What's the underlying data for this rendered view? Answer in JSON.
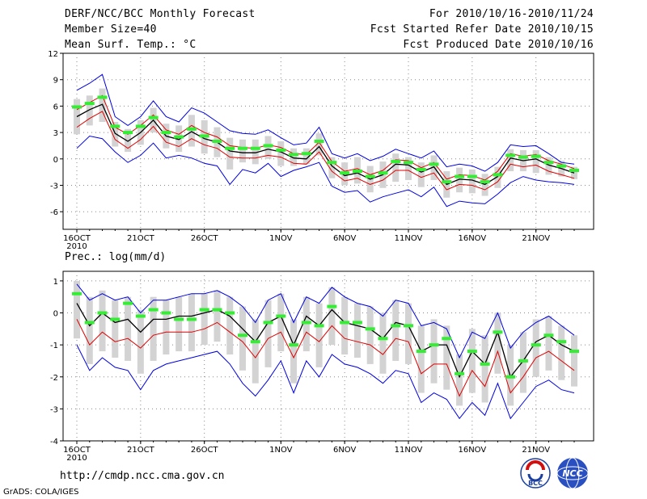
{
  "header": {
    "title": "DERF/NCC/BCC Monthly Forecast",
    "member": "Member Size=40",
    "variable": "Mean Surf. Temp.: °C",
    "period": "For 2010/10/16-2010/11/24",
    "fcst_started": "Fcst Started Refer Date 2010/10/15",
    "fcst_produced": "Fcst Produced Date 2010/10/16"
  },
  "footer": {
    "url": "http://cmdp.ncc.cma.gov.cn",
    "grads": "GrADS: COLA/IGES",
    "logo1": "BCC",
    "logo2": "NCC"
  },
  "colors": {
    "mean": "#000000",
    "members": "#e00000",
    "envelope": "#0000e0",
    "box": "#d3d3d3",
    "ensemble_marker": "#33ee33"
  },
  "chart_data": [
    {
      "type": "line",
      "title": "Mean Surf. Temp.: °C",
      "x": [
        1,
        2,
        3,
        4,
        5,
        6,
        7,
        8,
        9,
        10,
        11,
        12,
        13,
        14,
        15,
        16,
        17,
        18,
        19,
        20,
        21,
        22,
        23,
        24,
        25,
        26,
        27,
        28,
        29,
        30,
        31,
        32,
        33,
        34,
        35,
        36,
        37,
        38,
        39,
        40
      ],
      "xlabel": "2010",
      "tick_labels": [
        {
          "x": 1,
          "label": "16OCT"
        },
        {
          "x": 6,
          "label": "21OCT"
        },
        {
          "x": 11,
          "label": "26OCT"
        },
        {
          "x": 17,
          "label": "1NOV"
        },
        {
          "x": 22,
          "label": "6NOV"
        },
        {
          "x": 27,
          "label": "11NOV"
        },
        {
          "x": 32,
          "label": "16NOV"
        },
        {
          "x": 37,
          "label": "21NOV"
        }
      ],
      "ylim": [
        -8,
        12
      ],
      "yticks": [
        -6,
        -3,
        0,
        3,
        6,
        9,
        12
      ],
      "grid": true,
      "series": [
        {
          "name": "ensemble mean",
          "values": [
            4.8,
            5.6,
            6.2,
            2.9,
            2.0,
            3.0,
            4.4,
            2.6,
            2.2,
            3.1,
            2.3,
            1.9,
            0.9,
            0.7,
            0.7,
            1.1,
            0.8,
            0.1,
            0.0,
            1.4,
            -0.8,
            -1.9,
            -1.6,
            -2.3,
            -1.8,
            -0.6,
            -0.7,
            -1.5,
            -0.9,
            -2.9,
            -2.3,
            -2.4,
            -2.9,
            -2.0,
            0.1,
            -0.2,
            0.0,
            -0.7,
            -1.1,
            -1.6
          ]
        },
        {
          "name": "upper member line",
          "values": [
            5.6,
            6.4,
            7.2,
            3.6,
            2.8,
            3.8,
            5.0,
            3.3,
            2.8,
            3.8,
            3.0,
            2.5,
            1.5,
            1.3,
            1.2,
            1.6,
            1.3,
            0.6,
            0.5,
            1.9,
            -0.3,
            -1.4,
            -1.1,
            -1.8,
            -1.3,
            -0.1,
            -0.2,
            -1.0,
            -0.4,
            -2.3,
            -1.8,
            -1.9,
            -2.4,
            -1.4,
            0.6,
            0.3,
            0.5,
            -0.2,
            -0.6,
            -1.1
          ]
        },
        {
          "name": "lower member line",
          "values": [
            3.6,
            4.6,
            5.4,
            2.2,
            1.2,
            2.2,
            3.7,
            1.9,
            1.4,
            2.3,
            1.6,
            1.2,
            0.2,
            0.1,
            0.1,
            0.4,
            0.2,
            -0.5,
            -0.6,
            0.8,
            -1.4,
            -2.5,
            -2.2,
            -2.9,
            -2.4,
            -1.3,
            -1.3,
            -2.1,
            -1.6,
            -3.5,
            -2.9,
            -3.0,
            -3.5,
            -2.6,
            -0.6,
            -0.9,
            -0.7,
            -1.4,
            -1.8,
            -2.2
          ]
        },
        {
          "name": "maximum",
          "values": [
            7.8,
            8.6,
            9.6,
            4.8,
            3.8,
            4.8,
            6.6,
            4.8,
            4.2,
            5.8,
            5.2,
            4.2,
            3.2,
            2.9,
            2.8,
            3.3,
            2.4,
            1.6,
            1.8,
            3.6,
            0.6,
            0.1,
            0.6,
            -0.2,
            0.3,
            1.1,
            0.6,
            0.1,
            0.9,
            -0.9,
            -0.6,
            -0.8,
            -1.4,
            -0.4,
            1.6,
            1.4,
            1.5,
            0.6,
            -0.4,
            -0.6
          ]
        },
        {
          "name": "minimum",
          "values": [
            1.2,
            2.6,
            2.3,
            0.8,
            -0.4,
            0.4,
            1.8,
            0.1,
            0.4,
            0.1,
            -0.5,
            -0.8,
            -2.9,
            -1.2,
            -1.6,
            -0.5,
            -2.0,
            -1.3,
            -0.9,
            -0.4,
            -3.1,
            -3.8,
            -3.6,
            -4.9,
            -4.3,
            -3.9,
            -3.5,
            -4.3,
            -3.2,
            -5.4,
            -4.8,
            -5.0,
            -5.1,
            -4.0,
            -2.7,
            -2.0,
            -2.4,
            -2.6,
            -2.7,
            -2.9
          ]
        },
        {
          "name": "box top",
          "values": [
            6.8,
            7.2,
            8.0,
            4.2,
            3.4,
            4.4,
            5.8,
            4.0,
            3.8,
            5.0,
            4.4,
            3.6,
            2.4,
            2.2,
            2.2,
            2.6,
            2.0,
            1.2,
            1.2,
            2.9,
            0.2,
            -0.4,
            0.2,
            -0.8,
            -0.3,
            0.6,
            0.2,
            -0.4,
            0.4,
            -1.4,
            -1.0,
            -1.2,
            -1.7,
            -0.9,
            1.1,
            1.0,
            1.0,
            0.2,
            -0.2,
            -0.9
          ]
        },
        {
          "name": "box bottom",
          "values": [
            2.8,
            3.8,
            4.2,
            1.4,
            0.8,
            1.6,
            3.0,
            1.2,
            0.8,
            1.4,
            0.6,
            0.2,
            -1.2,
            -0.4,
            -0.6,
            0.0,
            -0.8,
            -0.8,
            -0.6,
            0.4,
            -2.2,
            -3.0,
            -2.8,
            -3.8,
            -3.3,
            -2.6,
            -2.4,
            -3.2,
            -2.4,
            -4.4,
            -3.8,
            -3.9,
            -4.2,
            -3.3,
            -1.4,
            -1.4,
            -1.6,
            -1.8,
            -2.0,
            -2.3
          ]
        },
        {
          "name": "ensemble marker",
          "values": [
            5.9,
            6.3,
            7.0,
            3.7,
            3.0,
            3.7,
            4.7,
            3.0,
            2.5,
            3.4,
            2.6,
            2.0,
            1.2,
            1.2,
            1.2,
            1.5,
            1.0,
            0.5,
            0.6,
            2.0,
            -0.4,
            -1.6,
            -1.4,
            -2.0,
            -1.6,
            -0.3,
            -0.4,
            -1.2,
            -0.6,
            -2.6,
            -2.0,
            -2.0,
            -2.6,
            -1.8,
            0.4,
            0.2,
            0.3,
            -0.4,
            -0.8,
            -1.3
          ]
        }
      ]
    },
    {
      "type": "line",
      "title": "Prec.: log(mm/d)",
      "x": [
        1,
        2,
        3,
        4,
        5,
        6,
        7,
        8,
        9,
        10,
        11,
        12,
        13,
        14,
        15,
        16,
        17,
        18,
        19,
        20,
        21,
        22,
        23,
        24,
        25,
        26,
        27,
        28,
        29,
        30,
        31,
        32,
        33,
        34,
        35,
        36,
        37,
        38,
        39,
        40
      ],
      "xlabel": "2010",
      "tick_labels": [
        {
          "x": 1,
          "label": "16OCT"
        },
        {
          "x": 6,
          "label": "21OCT"
        },
        {
          "x": 11,
          "label": "26OCT"
        },
        {
          "x": 17,
          "label": "1NOV"
        },
        {
          "x": 22,
          "label": "6NOV"
        },
        {
          "x": 27,
          "label": "11NOV"
        },
        {
          "x": 32,
          "label": "16NOV"
        },
        {
          "x": 37,
          "label": "21NOV"
        }
      ],
      "ylim": [
        -4,
        1.3
      ],
      "yticks": [
        -4,
        -3,
        -2,
        -1,
        0,
        1
      ],
      "grid": true,
      "series": [
        {
          "name": "ensemble mean",
          "values": [
            0.3,
            -0.4,
            0.0,
            -0.3,
            -0.2,
            -0.6,
            -0.2,
            -0.2,
            -0.1,
            -0.1,
            0.0,
            0.1,
            -0.1,
            -0.5,
            -0.9,
            -0.3,
            -0.1,
            -1.0,
            -0.1,
            -0.4,
            0.1,
            -0.3,
            -0.4,
            -0.5,
            -0.8,
            -0.3,
            -0.4,
            -1.2,
            -1.0,
            -1.0,
            -2.0,
            -1.2,
            -1.6,
            -0.6,
            -2.0,
            -1.5,
            -0.9,
            -0.7,
            -1.0,
            -1.2
          ]
        },
        {
          "name": "lower member line",
          "values": [
            -0.2,
            -1.0,
            -0.6,
            -0.9,
            -0.8,
            -1.1,
            -0.7,
            -0.6,
            -0.6,
            -0.6,
            -0.5,
            -0.3,
            -0.6,
            -0.9,
            -1.4,
            -0.8,
            -0.6,
            -1.4,
            -0.6,
            -0.9,
            -0.4,
            -0.8,
            -0.9,
            -1.0,
            -1.3,
            -0.8,
            -0.9,
            -1.9,
            -1.6,
            -1.6,
            -2.6,
            -1.8,
            -2.3,
            -1.2,
            -2.5,
            -2.0,
            -1.4,
            -1.2,
            -1.5,
            -1.8
          ]
        },
        {
          "name": "maximum",
          "values": [
            0.9,
            0.4,
            0.6,
            0.4,
            0.5,
            0.0,
            0.4,
            0.4,
            0.5,
            0.6,
            0.6,
            0.7,
            0.5,
            0.2,
            -0.3,
            0.4,
            0.6,
            -0.3,
            0.5,
            0.3,
            0.8,
            0.5,
            0.3,
            0.2,
            -0.1,
            0.4,
            0.3,
            -0.4,
            -0.3,
            -0.5,
            -1.4,
            -0.6,
            -0.8,
            0.0,
            -1.1,
            -0.6,
            -0.3,
            -0.1,
            -0.4,
            -0.7
          ]
        },
        {
          "name": "minimum",
          "values": [
            -1.0,
            -1.8,
            -1.4,
            -1.7,
            -1.8,
            -2.4,
            -1.8,
            -1.6,
            -1.5,
            -1.4,
            -1.3,
            -1.2,
            -1.6,
            -2.2,
            -2.6,
            -2.1,
            -1.5,
            -2.5,
            -1.5,
            -2.0,
            -1.3,
            -1.6,
            -1.7,
            -1.9,
            -2.2,
            -1.8,
            -1.9,
            -2.8,
            -2.5,
            -2.7,
            -3.3,
            -2.8,
            -3.2,
            -2.2,
            -3.3,
            -2.8,
            -2.3,
            -2.1,
            -2.4,
            -2.5
          ]
        },
        {
          "name": "box top",
          "values": [
            1.0,
            0.5,
            0.7,
            0.4,
            0.5,
            0.1,
            0.5,
            0.4,
            0.5,
            0.6,
            0.6,
            0.7,
            0.5,
            0.2,
            -0.2,
            0.4,
            0.6,
            -0.2,
            0.5,
            0.3,
            0.8,
            0.5,
            0.3,
            0.2,
            0.0,
            0.4,
            0.3,
            -0.4,
            -0.2,
            -0.4,
            -1.3,
            -0.5,
            -0.7,
            0.0,
            -1.0,
            -0.6,
            -0.2,
            -0.1,
            -0.4,
            -0.7
          ]
        },
        {
          "name": "box bottom",
          "values": [
            -0.8,
            -1.6,
            -1.2,
            -1.4,
            -1.5,
            -1.9,
            -1.5,
            -1.3,
            -1.2,
            -1.2,
            -1.0,
            -0.9,
            -1.3,
            -1.8,
            -2.2,
            -1.7,
            -1.2,
            -2.2,
            -1.2,
            -1.7,
            -1.0,
            -1.3,
            -1.4,
            -1.6,
            -1.9,
            -1.5,
            -1.6,
            -2.5,
            -2.2,
            -2.4,
            -2.9,
            -2.5,
            -2.8,
            -1.9,
            -2.9,
            -2.5,
            -2.0,
            -1.8,
            -2.1,
            -2.3
          ]
        },
        {
          "name": "ensemble marker",
          "values": [
            0.6,
            -0.3,
            0.0,
            -0.2,
            0.3,
            -0.1,
            0.1,
            0.0,
            -0.2,
            -0.2,
            0.1,
            0.1,
            0.0,
            -0.7,
            -0.9,
            -0.3,
            -0.1,
            -1.0,
            -0.3,
            -0.4,
            0.2,
            -0.3,
            -0.3,
            -0.5,
            -0.8,
            -0.4,
            -0.4,
            -1.2,
            -1.0,
            -0.8,
            -1.9,
            -1.2,
            -1.6,
            -0.6,
            -2.0,
            -1.5,
            -1.0,
            -0.7,
            -0.9,
            -1.2
          ]
        }
      ]
    }
  ]
}
